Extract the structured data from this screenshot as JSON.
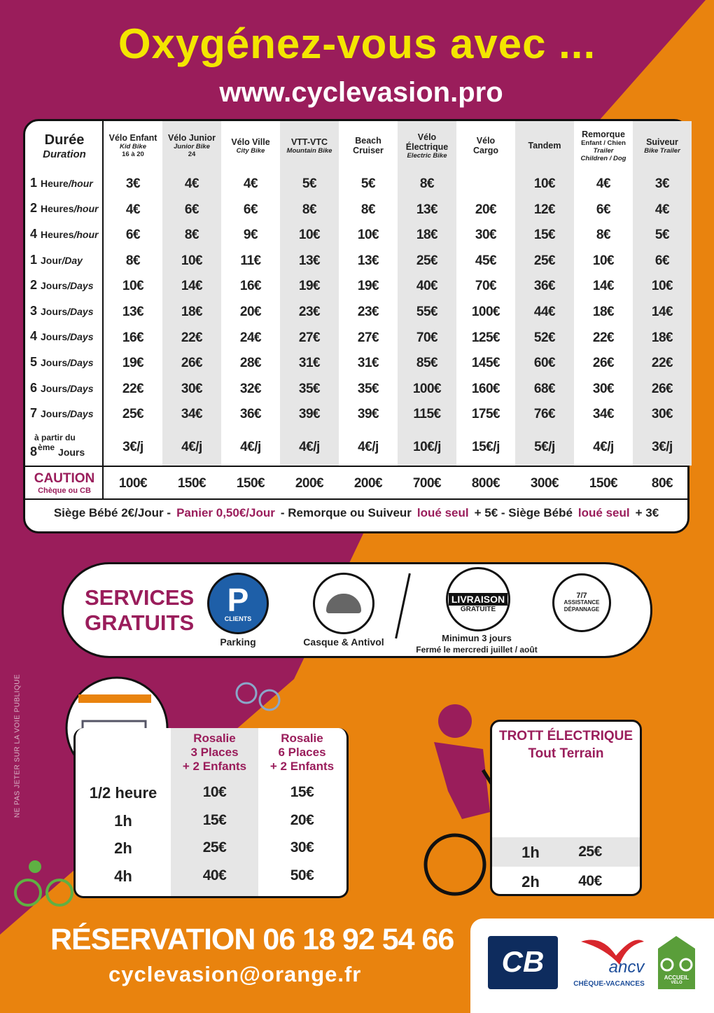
{
  "header": {
    "title": "Oxygénez-vous avec ...",
    "url": "www.cyclevasion.pro"
  },
  "prices": {
    "duration": {
      "fr": "Durée",
      "en": "Duration"
    },
    "columns": [
      {
        "name": [
          "Vélo Enfant"
        ],
        "en": [
          "Kid Bike"
        ],
        "note": [
          "16 à 20"
        ]
      },
      {
        "name": [
          "Vélo Junior"
        ],
        "en": [
          "Junior Bike"
        ],
        "note": [
          "24"
        ]
      },
      {
        "name": [
          "Vélo Ville"
        ],
        "en": [
          "City Bike"
        ]
      },
      {
        "name": [
          "VTT-VTC"
        ],
        "en": [
          "Mountain Bike"
        ]
      },
      {
        "name": [
          "Beach",
          "Cruiser"
        ]
      },
      {
        "name": [
          "Vélo Électrique"
        ],
        "en": [
          "Electric Bike"
        ]
      },
      {
        "name": [
          "Vélo",
          "Cargo"
        ]
      },
      {
        "name": [
          "Tandem"
        ]
      },
      {
        "name": [
          "Remorque"
        ],
        "note": [
          "Enfant / Chien"
        ],
        "en": [
          "Trailer",
          "Children / Dog"
        ]
      },
      {
        "name": [
          "Suiveur"
        ],
        "en": [
          "Bike Trailer"
        ]
      }
    ],
    "rows": [
      {
        "num": "1",
        "fr": "Heure",
        "en": "/hour",
        "prices": [
          "3€",
          "4€",
          "4€",
          "5€",
          "5€",
          "8€",
          null,
          "10€",
          "4€",
          "3€"
        ]
      },
      {
        "num": "2",
        "fr": "Heures",
        "en": "/hour",
        "prices": [
          "4€",
          "6€",
          "6€",
          "8€",
          "8€",
          "13€",
          "20€",
          "12€",
          "6€",
          "4€"
        ]
      },
      {
        "num": "4",
        "fr": "Heures",
        "en": "/hour",
        "prices": [
          "6€",
          "8€",
          "9€",
          "10€",
          "10€",
          "18€",
          "30€",
          "15€",
          "8€",
          "5€"
        ]
      },
      {
        "num": "1",
        "fr": "Jour",
        "en": "/Day",
        "prices": [
          "8€",
          "10€",
          "11€",
          "13€",
          "13€",
          "25€",
          "45€",
          "25€",
          "10€",
          "6€"
        ]
      },
      {
        "num": "2",
        "fr": "Jours",
        "en": "/Days",
        "prices": [
          "10€",
          "14€",
          "16€",
          "19€",
          "19€",
          "40€",
          "70€",
          "36€",
          "14€",
          "10€"
        ]
      },
      {
        "num": "3",
        "fr": "Jours",
        "en": "/Days",
        "prices": [
          "13€",
          "18€",
          "20€",
          "23€",
          "23€",
          "55€",
          "100€",
          "44€",
          "18€",
          "14€"
        ]
      },
      {
        "num": "4",
        "fr": "Jours",
        "en": "/Days",
        "prices": [
          "16€",
          "22€",
          "24€",
          "27€",
          "27€",
          "70€",
          "125€",
          "52€",
          "22€",
          "18€"
        ]
      },
      {
        "num": "5",
        "fr": "Jours",
        "en": "/Days",
        "prices": [
          "19€",
          "26€",
          "28€",
          "31€",
          "31€",
          "85€",
          "145€",
          "60€",
          "26€",
          "22€"
        ]
      },
      {
        "num": "6",
        "fr": "Jours",
        "en": "/Days",
        "prices": [
          "22€",
          "30€",
          "32€",
          "35€",
          "35€",
          "100€",
          "160€",
          "68€",
          "30€",
          "26€"
        ]
      },
      {
        "num": "7",
        "fr": "Jours",
        "en": "/Days",
        "prices": [
          "25€",
          "34€",
          "36€",
          "39€",
          "39€",
          "115€",
          "175€",
          "76€",
          "34€",
          "30€"
        ]
      },
      {
        "pre": "à partir du",
        "num": "8",
        "sup": "ème",
        "fr": "Jours",
        "prices": [
          "3€/j",
          "4€/j",
          "4€/j",
          "4€/j",
          "4€/j",
          "10€/j",
          "15€/j",
          "5€/j",
          "4€/j",
          "3€/j"
        ]
      }
    ],
    "caution": {
      "fr": "CAUTION",
      "en": "Chèque ou CB",
      "prices": [
        "100€",
        "150€",
        "150€",
        "200€",
        "200€",
        "700€",
        "800€",
        "300€",
        "150€",
        "80€"
      ]
    },
    "extras": [
      {
        "text": "Siège Bébé 2€/Jour -",
        "color": "#222222"
      },
      {
        "text": "Panier 0,50€/Jour",
        "color": "#9a1d5b"
      },
      {
        "text": "-  Remorque ou Suiveur",
        "color": "#222222"
      },
      {
        "text": "loué seul",
        "color": "#9a1d5b"
      },
      {
        "text": "+ 5€  -  Siège Bébé",
        "color": "#222222"
      },
      {
        "text": "loué seul",
        "color": "#9a1d5b"
      },
      {
        "text": "+ 3€",
        "color": "#222222"
      }
    ]
  },
  "services": {
    "title": [
      "SERVICES",
      "GRATUITS"
    ],
    "parking": {
      "icon": [
        "P",
        "CLIENTS"
      ],
      "label": "Parking"
    },
    "helmet": {
      "label": "Casque & Antivol"
    },
    "delivery": {
      "icon": [
        "LIVRAISON",
        "GRATUITE"
      ],
      "label": [
        "Minimun 3 jours",
        "Fermé le mercredi juillet / août"
      ]
    },
    "assistance": {
      "icon": [
        "7/7",
        "ASSISTANCE",
        "DÉPANNAGE"
      ]
    }
  },
  "side_note": "NE PAS JETER SUR LA VOIE PUBLIQUE",
  "rosalie": {
    "columns": [
      [
        "Rosalie",
        "3 Places",
        "+ 2 Enfants"
      ],
      [
        "Rosalie",
        "6 Places",
        "+ 2 Enfants"
      ]
    ],
    "rows": [
      {
        "label": "1/2 heure",
        "prices": [
          "10€",
          "15€"
        ]
      },
      {
        "label": "1h",
        "prices": [
          "15€",
          "20€"
        ]
      },
      {
        "label": "2h",
        "prices": [
          "25€",
          "30€"
        ]
      },
      {
        "label": "4h",
        "prices": [
          "40€",
          "50€"
        ]
      }
    ]
  },
  "trott": {
    "title": [
      "TROTT ÉLECTRIQUE",
      "Tout Terrain"
    ],
    "rows": [
      {
        "label": "1h",
        "price": "25€"
      },
      {
        "label": "2h",
        "price": "40€"
      }
    ]
  },
  "contact": {
    "reservation": "RÉSERVATION 06 18 92 54 66",
    "email": "cyclevasion@orange.fr"
  },
  "logos": {
    "cb": "CB",
    "ancv": "ancv",
    "cheque": "CHÈQUE-VACANCES",
    "accueil": [
      "ACCUEIL",
      "VÉLO"
    ]
  }
}
